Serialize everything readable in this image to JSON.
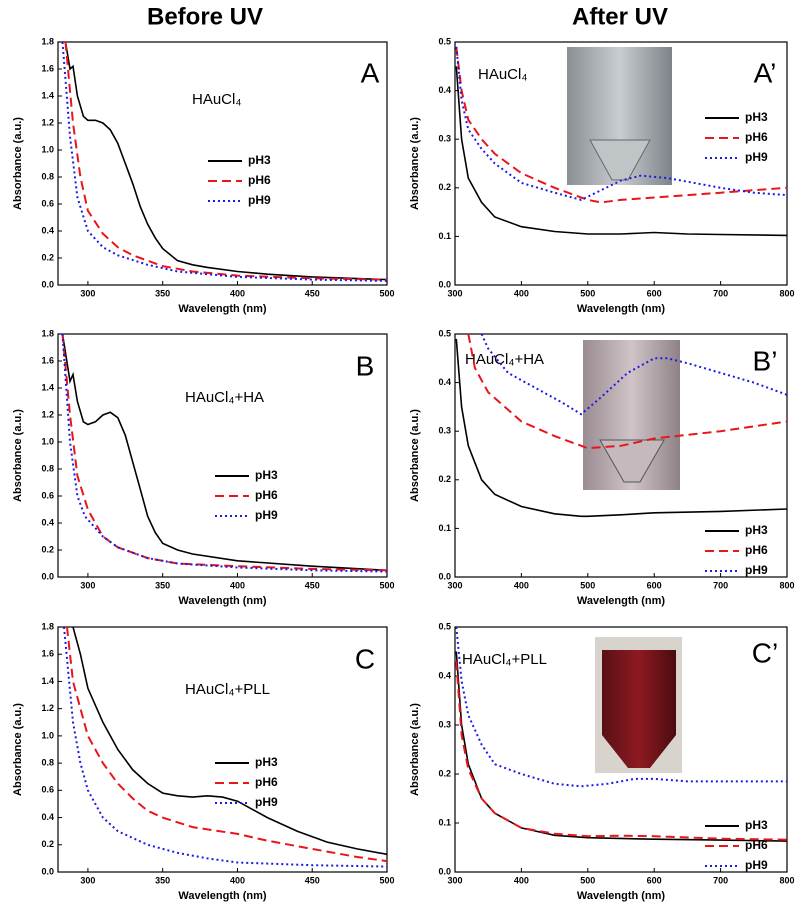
{
  "columns": [
    "Before UV",
    "After UV"
  ],
  "chart_data": [
    {
      "type": "line",
      "label": "A",
      "annotation": "HAuCl₄",
      "xlabel": "Wavelength (nm)",
      "ylabel": "Absorbance (a.u.)",
      "xlim": [
        280,
        500
      ],
      "ylim": [
        0,
        1.8
      ],
      "xticks": [
        300,
        350,
        400,
        450,
        500
      ],
      "yticks": [
        {
          "value": 0,
          "label": "0.0"
        },
        0.2,
        0.4,
        0.6,
        0.8,
        {
          "value": 1,
          "label": "1.0"
        },
        1.2,
        1.4,
        1.6,
        1.8
      ],
      "series": [
        {
          "name": "pH3",
          "color": "#000000",
          "linestyle": "solid",
          "x": [
            285,
            288,
            290,
            293,
            297,
            300,
            305,
            310,
            315,
            320,
            325,
            330,
            335,
            340,
            345,
            350,
            360,
            370,
            380,
            400,
            420,
            450,
            500
          ],
          "values": [
            1.8,
            1.6,
            1.62,
            1.4,
            1.25,
            1.22,
            1.22,
            1.2,
            1.15,
            1.05,
            0.9,
            0.75,
            0.58,
            0.45,
            0.35,
            0.27,
            0.18,
            0.15,
            0.13,
            0.1,
            0.08,
            0.06,
            0.04
          ]
        },
        {
          "name": "pH6",
          "color": "#e8151b",
          "linestyle": "dashed",
          "x": [
            285,
            290,
            295,
            300,
            310,
            320,
            330,
            350,
            370,
            400,
            450,
            500
          ],
          "values": [
            1.8,
            1.2,
            0.8,
            0.55,
            0.38,
            0.28,
            0.22,
            0.14,
            0.1,
            0.07,
            0.05,
            0.04
          ]
        },
        {
          "name": "pH9",
          "color": "#1a1ae6",
          "linestyle": "dotted",
          "x": [
            283,
            288,
            293,
            300,
            310,
            320,
            340,
            360,
            400,
            450,
            500
          ],
          "values": [
            1.8,
            1.1,
            0.65,
            0.4,
            0.28,
            0.22,
            0.15,
            0.1,
            0.06,
            0.04,
            0.03
          ]
        }
      ]
    },
    {
      "type": "line",
      "label": "A’",
      "annotation": "HAuCl₄",
      "xlabel": "Wavelength (nm)",
      "ylabel": "Absorbance (a.u.)",
      "xlim": [
        300,
        800
      ],
      "ylim": [
        0,
        0.5
      ],
      "xticks": [
        300,
        400,
        500,
        600,
        700,
        800
      ],
      "yticks": [
        {
          "value": 0,
          "label": "0.0"
        },
        0.1,
        0.2,
        0.3,
        0.4,
        0.5
      ],
      "series": [
        {
          "name": "pH3",
          "color": "#000000",
          "linestyle": "solid",
          "x": [
            302,
            310,
            320,
            340,
            360,
            400,
            450,
            500,
            550,
            600,
            650,
            700,
            800
          ],
          "values": [
            0.45,
            0.3,
            0.22,
            0.17,
            0.14,
            0.12,
            0.11,
            0.105,
            0.105,
            0.108,
            0.105,
            0.104,
            0.102
          ]
        },
        {
          "name": "pH6",
          "color": "#e8151b",
          "linestyle": "dashed",
          "x": [
            302,
            310,
            320,
            340,
            360,
            400,
            450,
            500,
            520,
            550,
            600,
            650,
            700,
            750,
            800
          ],
          "values": [
            0.49,
            0.4,
            0.34,
            0.3,
            0.27,
            0.23,
            0.2,
            0.175,
            0.17,
            0.175,
            0.18,
            0.185,
            0.19,
            0.195,
            0.2
          ]
        },
        {
          "name": "pH9",
          "color": "#1a1ae6",
          "linestyle": "dotted",
          "x": [
            302,
            310,
            320,
            340,
            360,
            400,
            450,
            490,
            520,
            550,
            580,
            620,
            660,
            700,
            750,
            800
          ],
          "values": [
            0.49,
            0.38,
            0.32,
            0.28,
            0.25,
            0.21,
            0.19,
            0.175,
            0.195,
            0.215,
            0.225,
            0.22,
            0.21,
            0.2,
            0.19,
            0.185
          ]
        }
      ]
    },
    {
      "type": "line",
      "label": "B",
      "annotation": "HAuCl₄+HA",
      "xlabel": "Wavelength (nm)",
      "ylabel": "Absorbance (a.u.)",
      "xlim": [
        280,
        500
      ],
      "ylim": [
        0,
        1.8
      ],
      "xticks": [
        300,
        350,
        400,
        450,
        500
      ],
      "yticks": [
        {
          "value": 0,
          "label": "0.0"
        },
        0.2,
        0.4,
        0.6,
        0.8,
        {
          "value": 1,
          "label": "1.0"
        },
        1.2,
        1.4,
        1.6,
        1.8
      ],
      "series": [
        {
          "name": "pH3",
          "color": "#000000",
          "linestyle": "solid",
          "x": [
            283,
            288,
            290,
            293,
            297,
            300,
            305,
            310,
            315,
            320,
            325,
            330,
            335,
            340,
            345,
            350,
            360,
            370,
            400,
            450,
            500
          ],
          "values": [
            1.8,
            1.45,
            1.5,
            1.3,
            1.15,
            1.13,
            1.15,
            1.2,
            1.22,
            1.18,
            1.05,
            0.85,
            0.65,
            0.45,
            0.33,
            0.25,
            0.2,
            0.17,
            0.12,
            0.08,
            0.05
          ]
        },
        {
          "name": "pH6",
          "color": "#e8151b",
          "linestyle": "dashed",
          "x": [
            283,
            288,
            293,
            300,
            310,
            320,
            340,
            360,
            400,
            450,
            500
          ],
          "values": [
            1.8,
            1.2,
            0.75,
            0.5,
            0.3,
            0.22,
            0.14,
            0.1,
            0.08,
            0.06,
            0.05
          ]
        },
        {
          "name": "pH9",
          "color": "#1a1ae6",
          "linestyle": "dotted",
          "x": [
            283,
            288,
            293,
            298,
            310,
            320,
            340,
            360,
            400,
            450,
            500
          ],
          "values": [
            1.8,
            1.0,
            0.6,
            0.45,
            0.3,
            0.22,
            0.14,
            0.1,
            0.07,
            0.05,
            0.04
          ]
        }
      ]
    },
    {
      "type": "line",
      "label": "B’",
      "annotation": "HAuCl₄+HA",
      "xlabel": "Wavelength (nm)",
      "ylabel": "Absorbance (a.u.)",
      "xlim": [
        300,
        800
      ],
      "ylim": [
        0,
        0.5
      ],
      "xticks": [
        300,
        400,
        500,
        600,
        700,
        800
      ],
      "yticks": [
        {
          "value": 0,
          "label": "0.0"
        },
        0.1,
        0.2,
        0.3,
        0.4,
        0.5
      ],
      "series": [
        {
          "name": "pH3",
          "color": "#000000",
          "linestyle": "solid",
          "x": [
            302,
            310,
            320,
            340,
            360,
            400,
            450,
            490,
            500,
            550,
            600,
            700,
            800
          ],
          "values": [
            0.49,
            0.35,
            0.27,
            0.2,
            0.17,
            0.145,
            0.13,
            0.125,
            0.125,
            0.128,
            0.132,
            0.135,
            0.14
          ]
        },
        {
          "name": "pH6",
          "color": "#e8151b",
          "linestyle": "dashed",
          "x": [
            320,
            330,
            350,
            400,
            450,
            500,
            550,
            600,
            700,
            800
          ],
          "values": [
            0.5,
            0.43,
            0.38,
            0.32,
            0.29,
            0.265,
            0.27,
            0.285,
            0.3,
            0.32
          ]
        },
        {
          "name": "pH9",
          "color": "#1a1ae6",
          "linestyle": "dotted",
          "x": [
            340,
            350,
            380,
            420,
            460,
            490,
            520,
            560,
            600,
            620,
            650,
            700,
            750,
            800
          ],
          "values": [
            0.5,
            0.47,
            0.42,
            0.39,
            0.36,
            0.335,
            0.37,
            0.42,
            0.45,
            0.45,
            0.44,
            0.42,
            0.4,
            0.375
          ]
        }
      ]
    },
    {
      "type": "line",
      "label": "C",
      "annotation": "HAuCl₄+PLL",
      "xlabel": "Wavelength (nm)",
      "ylabel": "Absorbance (a.u.)",
      "xlim": [
        280,
        500
      ],
      "ylim": [
        0,
        1.8
      ],
      "xticks": [
        300,
        350,
        400,
        450,
        500
      ],
      "yticks": [
        {
          "value": 0,
          "label": "0.0"
        },
        0.2,
        0.4,
        0.6,
        0.8,
        {
          "value": 1,
          "label": "1.0"
        },
        1.2,
        1.4,
        1.6,
        1.8
      ],
      "series": [
        {
          "name": "pH3",
          "color": "#000000",
          "linestyle": "solid",
          "x": [
            290,
            295,
            300,
            310,
            320,
            330,
            340,
            350,
            360,
            370,
            380,
            390,
            400,
            410,
            420,
            440,
            460,
            480,
            500
          ],
          "values": [
            1.8,
            1.6,
            1.35,
            1.1,
            0.9,
            0.75,
            0.65,
            0.58,
            0.56,
            0.55,
            0.56,
            0.55,
            0.52,
            0.46,
            0.4,
            0.3,
            0.22,
            0.17,
            0.13
          ]
        },
        {
          "name": "pH6",
          "color": "#e8151b",
          "linestyle": "dashed",
          "x": [
            286,
            290,
            300,
            310,
            320,
            330,
            340,
            350,
            370,
            400,
            420,
            450,
            480,
            500
          ],
          "values": [
            1.8,
            1.4,
            1.0,
            0.8,
            0.65,
            0.54,
            0.45,
            0.4,
            0.33,
            0.28,
            0.23,
            0.17,
            0.11,
            0.08
          ]
        },
        {
          "name": "pH9",
          "color": "#1a1ae6",
          "linestyle": "dotted",
          "x": [
            284,
            290,
            295,
            300,
            310,
            320,
            340,
            360,
            380,
            400,
            450,
            500
          ],
          "values": [
            1.8,
            1.1,
            0.8,
            0.6,
            0.4,
            0.3,
            0.2,
            0.14,
            0.1,
            0.07,
            0.05,
            0.04
          ]
        }
      ]
    },
    {
      "type": "line",
      "label": "C’",
      "annotation": "HAuCl₄+PLL",
      "xlabel": "Wavelength (nm)",
      "ylabel": "Absorbance (a.u.)",
      "xlim": [
        300,
        800
      ],
      "ylim": [
        0,
        0.5
      ],
      "xticks": [
        300,
        400,
        500,
        600,
        700,
        800
      ],
      "yticks": [
        {
          "value": 0,
          "label": "0.0"
        },
        0.1,
        0.2,
        0.3,
        0.4,
        0.5
      ],
      "series": [
        {
          "name": "pH3",
          "color": "#000000",
          "linestyle": "solid",
          "x": [
            302,
            310,
            320,
            340,
            360,
            400,
            450,
            500,
            600,
            700,
            800
          ],
          "values": [
            0.45,
            0.3,
            0.22,
            0.15,
            0.12,
            0.09,
            0.075,
            0.07,
            0.067,
            0.065,
            0.063
          ]
        },
        {
          "name": "pH6",
          "color": "#e8151b",
          "linestyle": "dashed",
          "x": [
            302,
            310,
            320,
            340,
            360,
            400,
            450,
            500,
            550,
            600,
            700,
            800
          ],
          "values": [
            0.43,
            0.28,
            0.21,
            0.15,
            0.12,
            0.09,
            0.078,
            0.073,
            0.074,
            0.073,
            0.068,
            0.066
          ]
        },
        {
          "name": "pH9",
          "color": "#1a1ae6",
          "linestyle": "dotted",
          "x": [
            302,
            310,
            320,
            340,
            360,
            400,
            450,
            490,
            530,
            570,
            600,
            650,
            700,
            800
          ],
          "values": [
            0.5,
            0.39,
            0.32,
            0.26,
            0.22,
            0.2,
            0.18,
            0.175,
            0.18,
            0.19,
            0.19,
            0.185,
            0.185,
            0.185
          ]
        }
      ]
    }
  ]
}
